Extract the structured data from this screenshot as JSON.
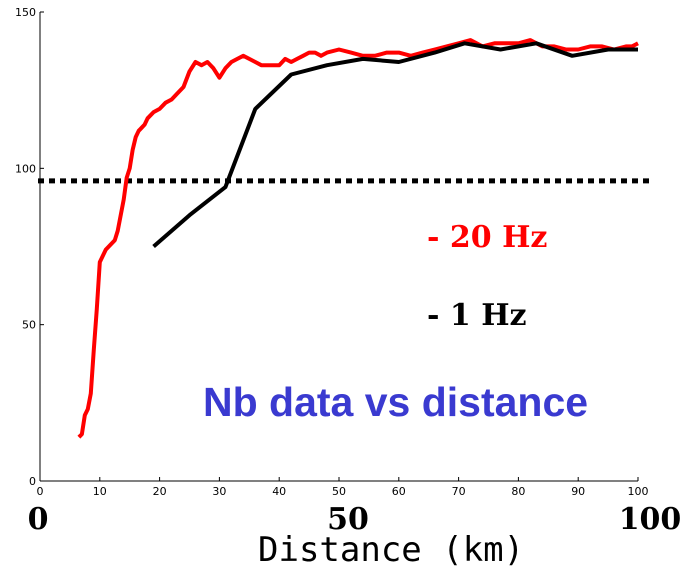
{
  "chart_data": {
    "type": "line",
    "title": "Nb data vs distance",
    "xlabel": "Distance (km)",
    "ylabel": "",
    "xlim": [
      0,
      100
    ],
    "ylim": [
      0,
      150
    ],
    "xticks": [
      0,
      10,
      20,
      30,
      40,
      50,
      60,
      70,
      80,
      90,
      100
    ],
    "yticks": [
      0,
      50,
      100,
      150
    ],
    "big_xticks": [
      "0",
      "50",
      "100"
    ],
    "grid": false,
    "legend_position": "right",
    "threshold": {
      "y": 96,
      "style": "dotted",
      "color": "#000000"
    },
    "series": [
      {
        "name": "- 20 Hz",
        "color": "#ff0000",
        "x": [
          6.5,
          7,
          7.5,
          8,
          8.5,
          9,
          9.5,
          10,
          10.5,
          11,
          11.5,
          12,
          12.5,
          13,
          13.5,
          14,
          14.5,
          15,
          15.5,
          16,
          16.5,
          17,
          17.5,
          18,
          19,
          20,
          21,
          22,
          23,
          24,
          25,
          26,
          27,
          28,
          29,
          30,
          31,
          32,
          33,
          34,
          35,
          36,
          37,
          38,
          39,
          40,
          41,
          42,
          43,
          44,
          45,
          46,
          47,
          48,
          50,
          52,
          54,
          56,
          58,
          60,
          62,
          64,
          66,
          68,
          70,
          72,
          74,
          76,
          78,
          80,
          82,
          84,
          86,
          88,
          90,
          92,
          94,
          96,
          98,
          99,
          100
        ],
        "values": [
          14,
          15,
          21,
          23,
          28,
          42,
          55,
          70,
          72,
          74,
          75,
          76,
          77,
          80,
          85,
          90,
          97,
          100,
          106,
          110,
          112,
          113,
          114,
          116,
          118,
          119,
          121,
          122,
          124,
          126,
          131,
          134,
          133,
          134,
          132,
          129,
          132,
          134,
          135,
          136,
          135,
          134,
          133,
          133,
          133,
          133,
          135,
          134,
          135,
          136,
          137,
          137,
          136,
          137,
          138,
          137,
          136,
          136,
          137,
          137,
          136,
          137,
          138,
          139,
          140,
          141,
          139,
          140,
          140,
          140,
          141,
          139,
          139,
          138,
          138,
          139,
          139,
          138,
          139,
          139,
          140
        ]
      },
      {
        "name": "- 1 Hz",
        "color": "#000000",
        "x": [
          19,
          25,
          31,
          36,
          42,
          48,
          54,
          60,
          66,
          71,
          77,
          83,
          89,
          95,
          100
        ],
        "values": [
          75,
          85,
          94,
          119,
          130,
          133,
          135,
          134,
          137,
          140,
          138,
          140,
          136,
          138,
          138
        ]
      }
    ]
  }
}
